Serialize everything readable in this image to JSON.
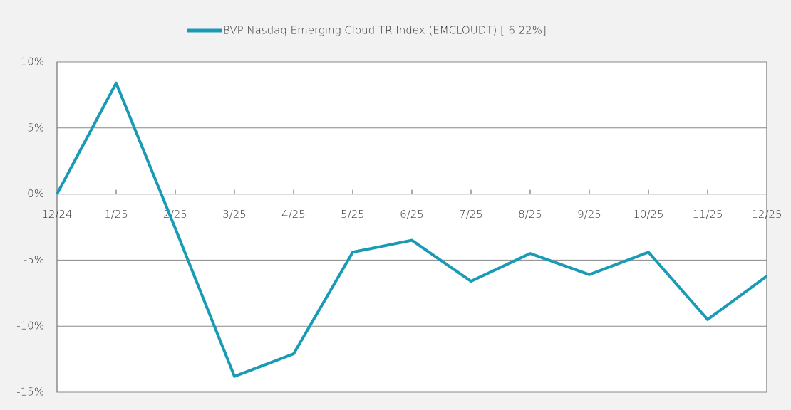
{
  "chart_data": {
    "type": "line",
    "categories": [
      "12/24",
      "1/25",
      "2/25",
      "3/25",
      "4/25",
      "5/25",
      "6/25",
      "7/25",
      "8/25",
      "9/25",
      "10/25",
      "11/25",
      "12/25"
    ],
    "series": [
      {
        "name": "BVP Nasdaq Emerging Cloud TR Index (EMCLOUDT) [-6.22%]",
        "color": "#1a9bb5",
        "values": [
          0,
          8.4,
          -2.6,
          -13.8,
          -12.1,
          -4.4,
          -3.5,
          -6.6,
          -4.5,
          -6.1,
          -4.4,
          -9.5,
          -6.22
        ]
      }
    ],
    "ylim": [
      -15,
      10
    ],
    "yticks": [
      {
        "value": -15,
        "label": "-15%"
      },
      {
        "value": -10,
        "label": "-10%"
      },
      {
        "value": -5,
        "label": "-5%"
      },
      {
        "value": 0,
        "label": "0%"
      },
      {
        "value": 5,
        "label": "5%"
      },
      {
        "value": 10,
        "label": "10%"
      }
    ],
    "grid": true,
    "legend": "top"
  }
}
